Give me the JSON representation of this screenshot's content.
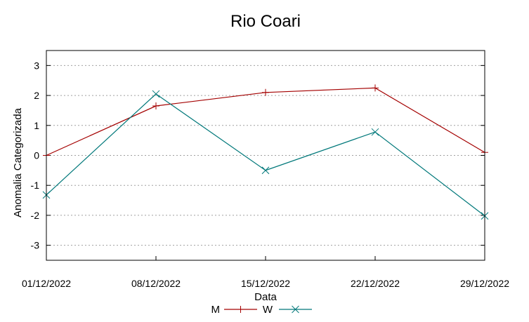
{
  "chart_data": {
    "type": "line",
    "title": "Rio Coari",
    "xlabel": "Data",
    "ylabel": "Anomalia Categorizada",
    "categories": [
      "01/12/2022",
      "08/12/2022",
      "15/12/2022",
      "22/12/2022",
      "29/12/2022"
    ],
    "yticks": [
      -3,
      -2,
      -1,
      0,
      1,
      2,
      3
    ],
    "ylim": [
      -3.5,
      3.5
    ],
    "grid": true,
    "legend_position": "bottom",
    "series": [
      {
        "name": "M",
        "marker": "plus",
        "color": "#a40000",
        "values": [
          0.0,
          1.65,
          2.1,
          2.25,
          0.1
        ]
      },
      {
        "name": "W",
        "marker": "cross",
        "color": "#00787a",
        "values": [
          -1.32,
          2.05,
          -0.5,
          0.78,
          -2.02
        ]
      }
    ]
  }
}
